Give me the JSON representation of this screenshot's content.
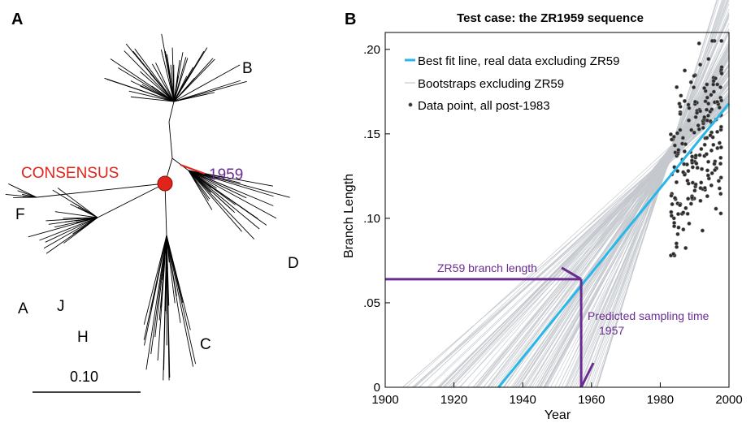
{
  "panel_a": {
    "panel_label": "A",
    "clade_labels": [
      "A",
      "B",
      "C",
      "D",
      "F",
      "H",
      "J"
    ],
    "consensus_label": "CONSENSUS",
    "sample_label": "1959",
    "scale_bar_label": "0.10",
    "colors": {
      "consensus": "#e2231a",
      "sample": "#6a2c91",
      "branches": "#000000"
    }
  },
  "chart_data": {
    "type": "scatter",
    "panel_label": "B",
    "title": "Test case: the ZR1959 sequence",
    "xlabel": "Year",
    "ylabel": "Branch Length",
    "xlim": [
      1900,
      2000
    ],
    "ylim": [
      0,
      0.21
    ],
    "x_ticks": [
      1900,
      1920,
      1940,
      1960,
      1980,
      2000
    ],
    "x_tick_labels": [
      "1900",
      "1920",
      "1940",
      "1960",
      "1980",
      "2000"
    ],
    "y_ticks": [
      0,
      0.05,
      0.1,
      0.15,
      0.2
    ],
    "y_tick_labels": [
      "0",
      ".05",
      ".10",
      ".15",
      ".20"
    ],
    "legend": {
      "placement": "top-left",
      "entries": [
        {
          "label": "Best fit line, real data excluding ZR59",
          "marker": "line",
          "color": "#29b6e8"
        },
        {
          "label": "Bootstraps excluding ZR59",
          "marker": "thin-line",
          "color": "#b8bcc2"
        },
        {
          "label": "Data point, all post-1983",
          "marker": "point",
          "color": "#222222"
        }
      ]
    },
    "series": [
      {
        "name": "Best fit line, real data excluding ZR59",
        "x": [
          1933,
          2000
        ],
        "y": [
          0,
          0.168
        ]
      },
      {
        "name": "Bootstraps excluding ZR59",
        "x_intercept_range": [
          1905,
          1963
        ],
        "converge_x": 1983,
        "converge_y": 0.138
      },
      {
        "name": "Data point, all post-1983",
        "x_range": [
          1983,
          1998
        ],
        "y_range": [
          0.078,
          0.205
        ],
        "count": 200
      }
    ],
    "annotations": [
      {
        "text": "ZR59 branch length",
        "y": 0.064,
        "x_from": 1900,
        "x_to": 1957
      },
      {
        "text": "Predicted sampling time",
        "x": 1957
      },
      {
        "text": "1957",
        "x": 1957
      }
    ],
    "colors": {
      "annotation": "#6a2c91",
      "fit": "#29b6e8",
      "band": "#c5c9ce"
    }
  }
}
